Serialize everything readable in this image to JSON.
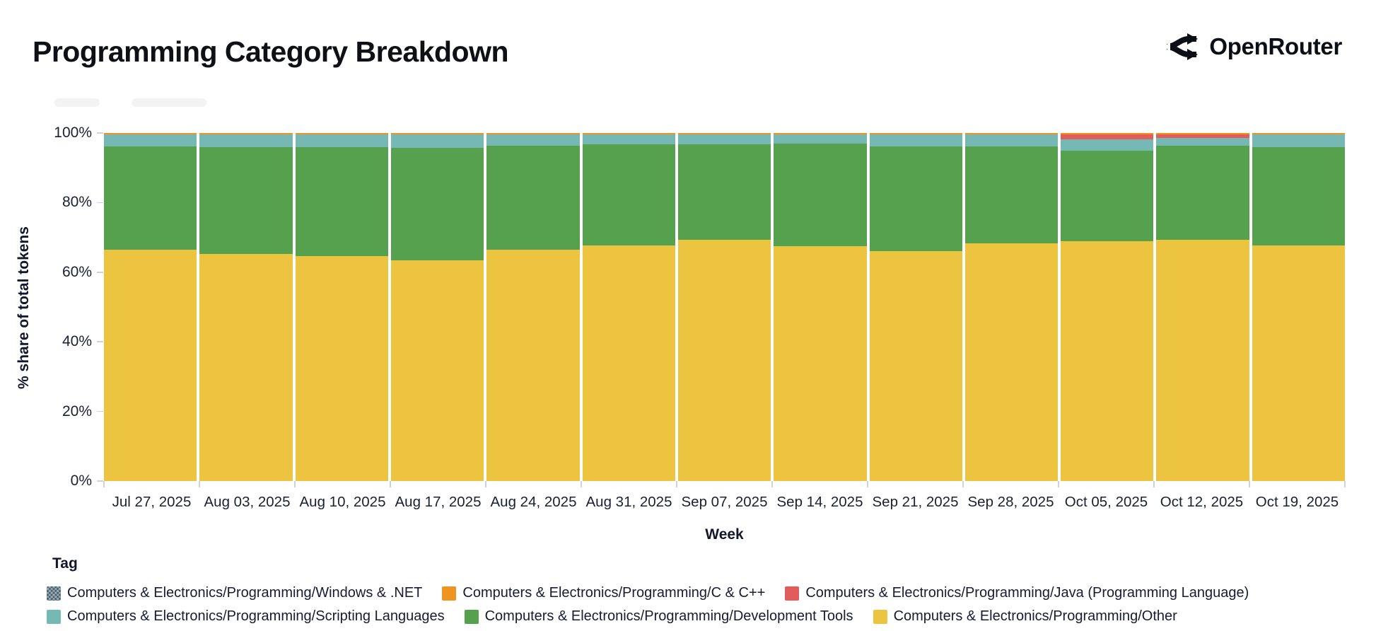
{
  "header": {
    "title": "Programming Category Breakdown",
    "brand": "OpenRouter"
  },
  "axes": {
    "x_title": "Week",
    "y_title": "% share of total tokens"
  },
  "legend": {
    "title": "Tag",
    "rows": [
      [
        5,
        4,
        3
      ],
      [
        2,
        1,
        0
      ]
    ]
  },
  "chart_data": {
    "type": "bar",
    "stacked": true,
    "units": "percent of total tokens",
    "title": "Programming Category Breakdown",
    "xlabel": "Week",
    "ylabel": "% share of total tokens",
    "ylim": [
      0,
      100
    ],
    "ytick_values": [
      0,
      20,
      40,
      60,
      80,
      100
    ],
    "ytick_labels": [
      "0%",
      "20%",
      "40%",
      "60%",
      "80%",
      "100%"
    ],
    "legend_position": "bottom",
    "grid": false,
    "categories": [
      "Jul 27, 2025",
      "Aug 03, 2025",
      "Aug 10, 2025",
      "Aug 17, 2025",
      "Aug 24, 2025",
      "Aug 31, 2025",
      "Sep 07, 2025",
      "Sep 14, 2025",
      "Sep 21, 2025",
      "Sep 28, 2025",
      "Oct 05, 2025",
      "Oct 12, 2025",
      "Oct 19, 2025"
    ],
    "series": [
      {
        "key": "other",
        "name": "Computers & Electronics/Programming/Other",
        "color": "#ecc440",
        "values": [
          66.5,
          65.2,
          64.6,
          63.4,
          66.4,
          67.7,
          69.2,
          67.5,
          66.1,
          68.3,
          68.9,
          69.3,
          67.7
        ]
      },
      {
        "key": "development-tools",
        "name": "Computers & Electronics/Programming/Development Tools",
        "color": "#55a14e",
        "values": [
          29.6,
          30.8,
          31.3,
          32.3,
          29.9,
          29.0,
          27.5,
          29.4,
          30.0,
          27.8,
          26.0,
          27.0,
          28.3
        ]
      },
      {
        "key": "scripting-languages",
        "name": "Computers & Electronics/Programming/Scripting Languages",
        "color": "#76b8b3",
        "values": [
          3.4,
          3.5,
          3.6,
          3.8,
          3.2,
          2.8,
          2.8,
          2.6,
          3.4,
          3.4,
          3.3,
          2.3,
          3.5
        ]
      },
      {
        "key": "java",
        "name": "Computers & Electronics/Programming/Java (Programming Language)",
        "color": "#e25c5c",
        "values": [
          0.05,
          0.05,
          0.05,
          0.05,
          0.05,
          0.05,
          0.05,
          0.05,
          0.05,
          0.05,
          1.3,
          0.9,
          0.05
        ]
      },
      {
        "key": "c-cpp",
        "name": "Computers & Electronics/Programming/C & C++",
        "color": "#f0931f",
        "values": [
          0.4,
          0.4,
          0.4,
          0.4,
          0.4,
          0.4,
          0.4,
          0.4,
          0.4,
          0.4,
          0.4,
          0.4,
          0.4
        ]
      },
      {
        "key": "windows-net",
        "name": "Computers & Electronics/Programming/Windows & .NET",
        "color": "#45606f",
        "hatch": true,
        "values": [
          0.05,
          0.05,
          0.05,
          0.05,
          0.05,
          0.05,
          0.05,
          0.05,
          0.05,
          0.05,
          0.05,
          0.05,
          0.05
        ]
      }
    ]
  }
}
